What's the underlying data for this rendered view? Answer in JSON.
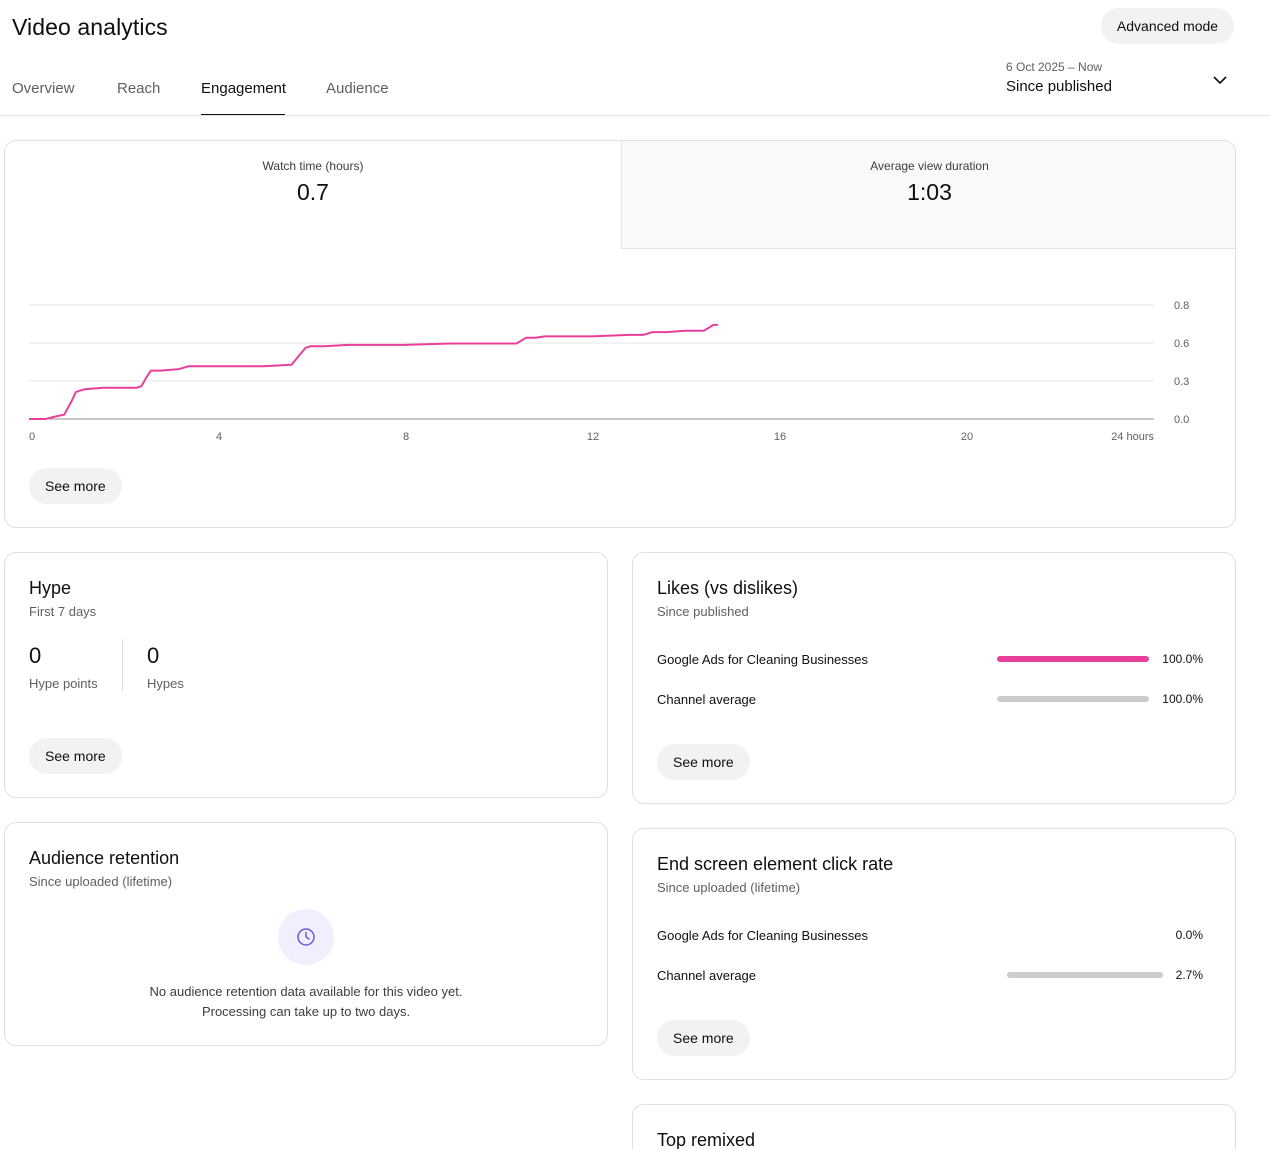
{
  "header": {
    "title": "Video analytics",
    "advanced_mode_label": "Advanced mode",
    "tabs": [
      {
        "label": "Overview",
        "active": false
      },
      {
        "label": "Reach",
        "active": false
      },
      {
        "label": "Engagement",
        "active": true
      },
      {
        "label": "Audience",
        "active": false
      }
    ],
    "date_range": {
      "range": "6 Oct 2025 – Now",
      "label": "Since published"
    }
  },
  "watch_card": {
    "metrics": [
      {
        "label": "Watch time (hours)",
        "value": "0.7",
        "selected": true
      },
      {
        "label": "Average view duration",
        "value": "1:03",
        "selected": false
      }
    ],
    "see_more_label": "See more"
  },
  "chart_data": {
    "type": "line",
    "title": "",
    "xlabel": "",
    "ylabel": "",
    "x_ticks": [
      "0",
      "4",
      "8",
      "12",
      "16",
      "20",
      "24 hours"
    ],
    "y_ticks": [
      "0.8",
      "0.6",
      "0.3",
      "0.0"
    ],
    "xlim": [
      0,
      24
    ],
    "ylim": [
      0,
      0.8
    ],
    "grid": true,
    "line_color": "#e8409a",
    "series": [
      {
        "x": [
          0,
          0.35,
          0.6,
          0.75,
          0.9,
          1.0,
          1.2,
          1.6,
          2.0,
          2.3,
          2.4,
          2.5,
          2.6,
          2.8,
          3.2,
          3.4,
          3.6,
          4.0,
          5.0,
          5.6,
          5.8,
          5.9,
          6.0,
          6.3,
          6.8,
          8.0,
          9.0,
          10.0,
          10.4,
          10.6,
          10.8,
          11.0,
          12.0,
          12.8,
          13.1,
          13.3,
          13.6,
          14.0,
          14.2,
          14.4,
          14.6,
          14.7
        ],
        "y": [
          0,
          0,
          0.02,
          0.03,
          0.12,
          0.19,
          0.21,
          0.22,
          0.22,
          0.22,
          0.23,
          0.29,
          0.34,
          0.34,
          0.35,
          0.37,
          0.37,
          0.37,
          0.37,
          0.38,
          0.46,
          0.5,
          0.51,
          0.51,
          0.52,
          0.52,
          0.53,
          0.53,
          0.53,
          0.57,
          0.57,
          0.58,
          0.58,
          0.59,
          0.59,
          0.61,
          0.61,
          0.62,
          0.62,
          0.62,
          0.66,
          0.66
        ]
      }
    ]
  },
  "hype_card": {
    "title": "Hype",
    "subtitle": "First 7 days",
    "points_value": "0",
    "points_label": "Hype points",
    "hypes_value": "0",
    "hypes_label": "Hypes",
    "see_more_label": "See more"
  },
  "likes_card": {
    "title": "Likes (vs dislikes)",
    "subtitle": "Since published",
    "rows": [
      {
        "label": "Google Ads for Cleaning Businesses",
        "value": "100.0%",
        "fraction": 1.0,
        "color": "#e8409a"
      },
      {
        "label": "Channel average",
        "value": "100.0%",
        "fraction": 1.0,
        "color": "#cccccc"
      }
    ],
    "see_more_label": "See more"
  },
  "retention_card": {
    "title": "Audience retention",
    "subtitle": "Since uploaded (lifetime)",
    "icon": "clock-icon",
    "message_line1": "No audience retention data available for this video yet.",
    "message_line2": "Processing can take up to two days."
  },
  "endscreen_card": {
    "title": "End screen element click rate",
    "subtitle": "Since uploaded (lifetime)",
    "rows": [
      {
        "label": "Google Ads for Cleaning Businesses",
        "value": "0.0%",
        "fraction": 0.0,
        "color": "#e8409a"
      },
      {
        "label": "Channel average",
        "value": "2.7%",
        "fraction": 1.0,
        "color": "#cccccc"
      }
    ],
    "see_more_label": "See more"
  },
  "remixed_card": {
    "title": "Top remixed"
  }
}
